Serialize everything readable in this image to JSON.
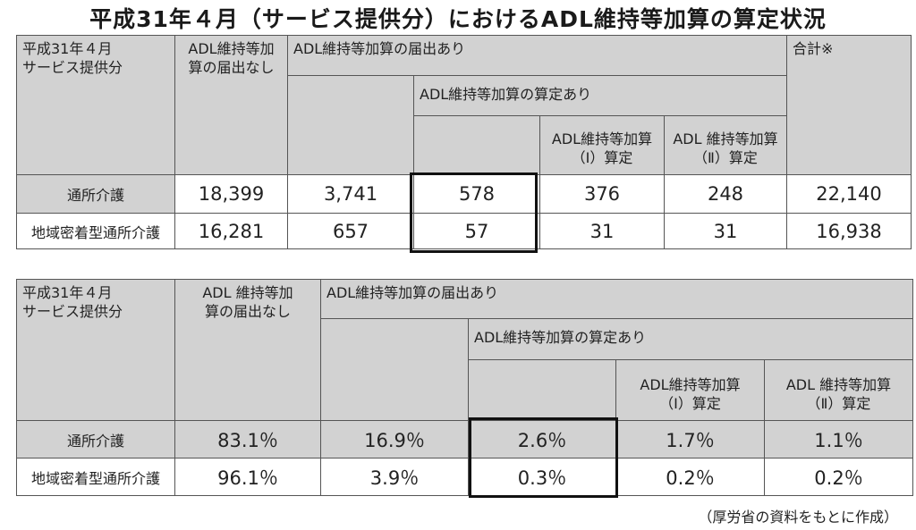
{
  "title": "平成31年４月（サービス提供分）におけるADL維持等加算の算定状況",
  "table1": {
    "header": {
      "period": "平成31年４月\nサービス提供分",
      "no_report": "ADL維持等加\n算の届出なし",
      "reported": "ADL維持等加算の届出あり",
      "calculated": "ADL維持等加算の算定あり",
      "type1": "ADL維持等加算\n（Ⅰ）算定",
      "type2": "ADL 維持等加算\n（Ⅱ）算定",
      "total": "合計※"
    },
    "rows": [
      {
        "label": "通所介護",
        "no_report": "18,399",
        "reported": "3,741",
        "calculated": "578",
        "type1": "376",
        "type2": "248",
        "total": "22,140"
      },
      {
        "label": "地域密着型通所介護",
        "no_report": "16,281",
        "reported": "657",
        "calculated": "57",
        "type1": "31",
        "type2": "31",
        "total": "16,938"
      }
    ]
  },
  "table2": {
    "header": {
      "period": "平成31年４月\nサービス提供分",
      "no_report": "ADL 維持等加\n算の届出なし",
      "reported": "ADL維持等加算の届出あり",
      "calculated": "ADL維持等加算の算定あり",
      "type1": "ADL維持等加算\n（Ⅰ）算定",
      "type2": "ADL 維持等加算\n（Ⅱ）算定"
    },
    "rows": [
      {
        "label": "通所介護",
        "no_report": "83.1％",
        "reported": "16.9％",
        "calculated": "2.6％",
        "type1": "1.7％",
        "type2": "1.1％"
      },
      {
        "label": "地域密着型通所介護",
        "no_report": "96.1％",
        "reported": "3.9％",
        "calculated": "0.3％",
        "type1": "0.2％",
        "type2": "0.2％"
      }
    ]
  },
  "source_note": "（厚労省の資料をもとに作成）"
}
